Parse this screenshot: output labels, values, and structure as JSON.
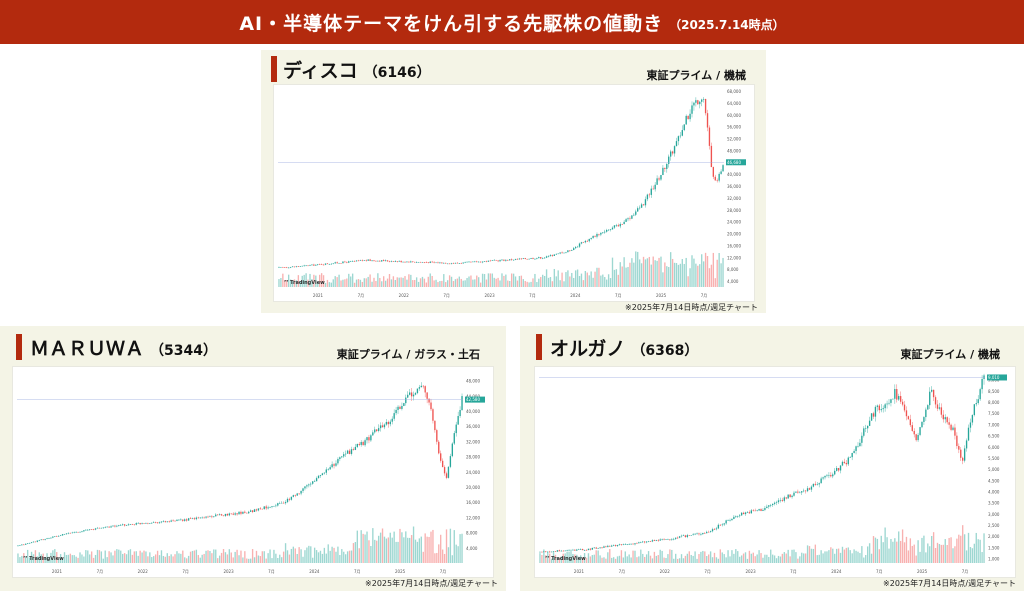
{
  "header": {
    "title": "AI・半導体テーマをけん引する先駆株の値動き",
    "date": "（2025.7.14時点）"
  },
  "watermark": "TradingView",
  "panels": [
    {
      "name": "ディスコ",
      "code": "（6146）",
      "market": "東証プライム / 機械",
      "note": "※2025年7月14日時点/週足チャート"
    },
    {
      "name": "ＭＡＲＵＷＡ",
      "code": "（5344）",
      "market": "東証プライム / ガラス・土石",
      "note": "※2025年7月14日時点/週足チャート"
    },
    {
      "name": "オルガノ",
      "code": "（6368）",
      "market": "東証プライム / 機械",
      "note": "※2025年7月14日時点/週足チャート"
    }
  ],
  "chart_data": [
    {
      "type": "candlestick",
      "title": "ディスコ（6146）",
      "yticks": [
        "4,000",
        "8,000",
        "12,000",
        "16,000",
        "20,000",
        "24,000",
        "28,000",
        "32,000",
        "36,000",
        "40,000",
        "44,000",
        "48,000",
        "52,000",
        "56,000",
        "60,000",
        "64,000",
        "68,000"
      ],
      "ylim": [
        2000,
        68000
      ],
      "xticks": [
        "2021",
        "7月",
        "2022",
        "7月",
        "2023",
        "7月",
        "2024",
        "7月",
        "2025",
        "7月"
      ],
      "trend": [
        [
          0,
          8500
        ],
        [
          0.05,
          9000
        ],
        [
          0.12,
          10000
        ],
        [
          0.2,
          11000
        ],
        [
          0.3,
          10500
        ],
        [
          0.4,
          10000
        ],
        [
          0.5,
          11000
        ],
        [
          0.6,
          12000
        ],
        [
          0.65,
          14000
        ],
        [
          0.72,
          20000
        ],
        [
          0.78,
          24000
        ],
        [
          0.82,
          30000
        ],
        [
          0.86,
          40000
        ],
        [
          0.9,
          52000
        ],
        [
          0.93,
          63000
        ],
        [
          0.955,
          67000
        ],
        [
          0.965,
          56000
        ],
        [
          0.975,
          40000
        ],
        [
          0.985,
          36000
        ],
        [
          1.0,
          44000
        ]
      ],
      "last_price": "46,680"
    },
    {
      "type": "candlestick",
      "title": "ＭＡＲＵＷＡ（5344）",
      "yticks": [
        "4,000",
        "8,000",
        "12,000",
        "16,000",
        "20,000",
        "24,000",
        "28,000",
        "32,000",
        "36,000",
        "40,000",
        "44,000",
        "48,000"
      ],
      "ylim": [
        0,
        50000
      ],
      "xticks": [
        "2021",
        "7月",
        "2022",
        "7月",
        "2023",
        "7月",
        "2024",
        "7月",
        "2025",
        "7月"
      ],
      "trend": [
        [
          0,
          4500
        ],
        [
          0.05,
          6000
        ],
        [
          0.12,
          8000
        ],
        [
          0.2,
          9500
        ],
        [
          0.28,
          10500
        ],
        [
          0.35,
          11000
        ],
        [
          0.45,
          12500
        ],
        [
          0.52,
          13500
        ],
        [
          0.6,
          16000
        ],
        [
          0.65,
          20000
        ],
        [
          0.72,
          27000
        ],
        [
          0.78,
          32000
        ],
        [
          0.84,
          38000
        ],
        [
          0.88,
          44000
        ],
        [
          0.91,
          47000
        ],
        [
          0.93,
          40000
        ],
        [
          0.95,
          27000
        ],
        [
          0.965,
          22000
        ],
        [
          0.985,
          36000
        ],
        [
          1.0,
          43000
        ]
      ],
      "last_price": "42,580"
    },
    {
      "type": "candlestick",
      "title": "オルガノ（6368）",
      "yticks": [
        "1,000",
        "1,500",
        "2,000",
        "2,500",
        "3,000",
        "3,500",
        "4,000",
        "4,500",
        "5,000",
        "5,500",
        "6,000",
        "6,500",
        "7,000",
        "7,500",
        "8,000",
        "8,500",
        "9,000"
      ],
      "ylim": [
        800,
        9300
      ],
      "xticks": [
        "2021",
        "7月",
        "2022",
        "7月",
        "2023",
        "7月",
        "2024",
        "7月",
        "2025",
        "7月"
      ],
      "trend": [
        [
          0,
          1300
        ],
        [
          0.1,
          1400
        ],
        [
          0.2,
          1650
        ],
        [
          0.3,
          1900
        ],
        [
          0.38,
          2200
        ],
        [
          0.45,
          3000
        ],
        [
          0.5,
          3200
        ],
        [
          0.55,
          3700
        ],
        [
          0.6,
          4100
        ],
        [
          0.65,
          4700
        ],
        [
          0.7,
          5500
        ],
        [
          0.75,
          7500
        ],
        [
          0.8,
          8400
        ],
        [
          0.85,
          6300
        ],
        [
          0.88,
          8500
        ],
        [
          0.91,
          7200
        ],
        [
          0.93,
          6800
        ],
        [
          0.95,
          5300
        ],
        [
          0.975,
          7600
        ],
        [
          1.0,
          9100
        ]
      ],
      "last_price": "9,010"
    }
  ]
}
